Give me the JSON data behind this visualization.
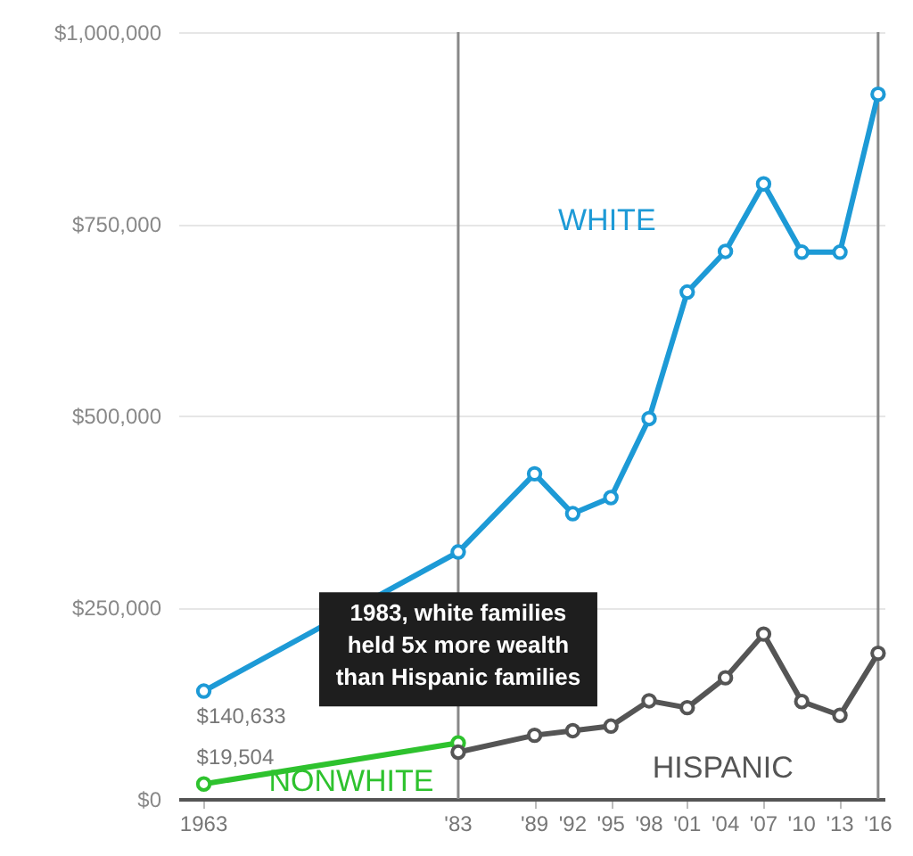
{
  "chart_data": {
    "type": "line",
    "series": [
      {
        "name": "WHITE",
        "color": "#1d9ad6",
        "x": [
          1963,
          1983,
          1989,
          1992,
          1995,
          1998,
          2001,
          2004,
          2007,
          2010,
          2013,
          2016
        ],
        "values": [
          140633,
          322000,
          424000,
          372000,
          393000,
          496000,
          661000,
          714000,
          802000,
          713000,
          713000,
          919000
        ],
        "value_labels": [
          "$140,633",
          null,
          null,
          null,
          null,
          null,
          null,
          null,
          null,
          null,
          null,
          null
        ]
      },
      {
        "name": "NONWHITE",
        "color": "#2ec22e",
        "x": [
          1963,
          1983
        ],
        "values": [
          19504,
          73000
        ],
        "value_labels": [
          "$19,504",
          null
        ]
      },
      {
        "name": "HISPANIC",
        "color": "#555555",
        "x": [
          1983,
          1989,
          1992,
          1995,
          1998,
          2001,
          2004,
          2007,
          2010,
          2013,
          2016
        ],
        "values": [
          61000,
          83000,
          89000,
          95000,
          128000,
          119000,
          158000,
          215000,
          127000,
          109000,
          190000
        ]
      }
    ],
    "xlim": [
      1961,
      2016.5
    ],
    "xticks": [
      {
        "value": 1963,
        "label": "1963"
      },
      {
        "value": 1983,
        "label": "'83"
      },
      {
        "value": 1989,
        "label": "'89"
      },
      {
        "value": 1992,
        "label": "'92"
      },
      {
        "value": 1995,
        "label": "'95"
      },
      {
        "value": 1998,
        "label": "'98"
      },
      {
        "value": 2001,
        "label": "'01"
      },
      {
        "value": 2004,
        "label": "'04"
      },
      {
        "value": 2007,
        "label": "'07"
      },
      {
        "value": 2010,
        "label": "'10"
      },
      {
        "value": 2013,
        "label": "'13"
      },
      {
        "value": 2016,
        "label": "'16"
      }
    ],
    "ylim": [
      0,
      1000000
    ],
    "yticks": [
      {
        "value": 0,
        "label": "$0"
      },
      {
        "value": 250000,
        "label": "$250,000"
      },
      {
        "value": 500000,
        "label": "$500,000"
      },
      {
        "value": 750000,
        "label": "$750,000"
      },
      {
        "value": 1000000,
        "label": "$1,000,000"
      }
    ],
    "ref_lines": [
      {
        "axis": "x",
        "value": 1983,
        "color": "#888888"
      },
      {
        "axis": "x",
        "value": 2016,
        "color": "#888888"
      }
    ],
    "annotations": [
      {
        "text": "1983, white families\nheld  5x more wealth\nthan Hispanic families",
        "x": 1983,
        "y": 195000
      }
    ],
    "grid": "y",
    "marker": "circle",
    "line_style": "solid",
    "legend": false
  }
}
